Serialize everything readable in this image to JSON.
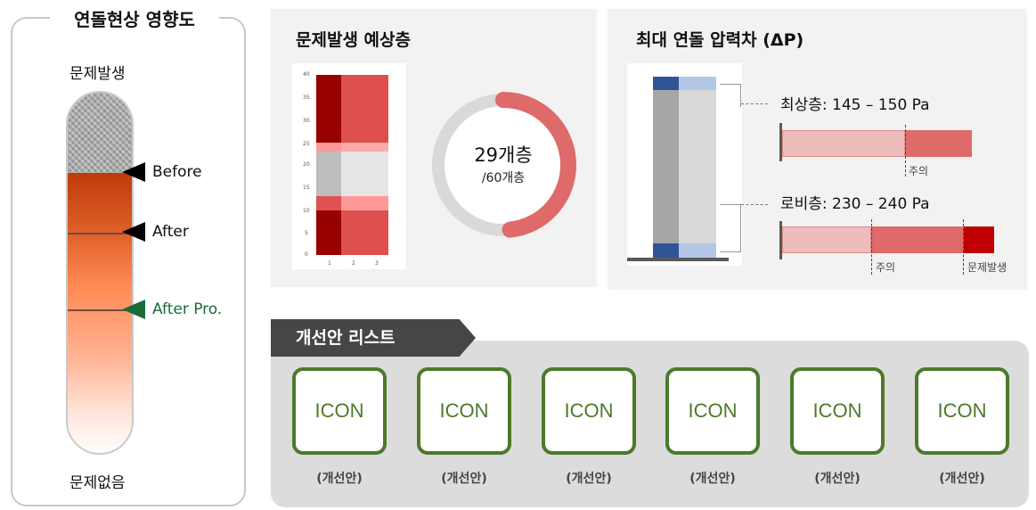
{
  "impact_panel": {
    "title": "연돌현상 영향도",
    "top_label": "문제발생",
    "bottom_label": "문제없음",
    "markers": [
      {
        "label": "Before",
        "color": "#000000"
      },
      {
        "label": "After",
        "color": "#000000"
      },
      {
        "label": "After Pro.",
        "color": "#1b6b3a"
      }
    ]
  },
  "problem_floors": {
    "title": "문제발생 예상층",
    "heatmap": {
      "y_ticks": [
        "40",
        "35",
        "30",
        "25",
        "20",
        "15",
        "10",
        "5",
        "0"
      ],
      "x_ticks": [
        "1",
        "2",
        "3"
      ]
    },
    "donut": {
      "value_text": "29개층",
      "total_text": "/60개층",
      "value": 29,
      "total": 60,
      "arc_color": "#de6a6a",
      "track_color": "#d9d9d9"
    }
  },
  "pressure": {
    "title": "최대 연돌 압력차 (ΔP)",
    "rows": [
      {
        "label": "최상층: 145 – 150 Pa",
        "markers": [
          "주의"
        ]
      },
      {
        "label": "로비층: 230 – 240 Pa",
        "markers": [
          "주의",
          "문제발생"
        ]
      }
    ]
  },
  "improvements": {
    "title": "개선안 리스트",
    "items": [
      {
        "icon": "ICON",
        "caption": "(개선안)"
      },
      {
        "icon": "ICON",
        "caption": "(개선안)"
      },
      {
        "icon": "ICON",
        "caption": "(개선안)"
      },
      {
        "icon": "ICON",
        "caption": "(개선안)"
      },
      {
        "icon": "ICON",
        "caption": "(개선안)"
      },
      {
        "icon": "ICON",
        "caption": "(개선안)"
      }
    ]
  }
}
